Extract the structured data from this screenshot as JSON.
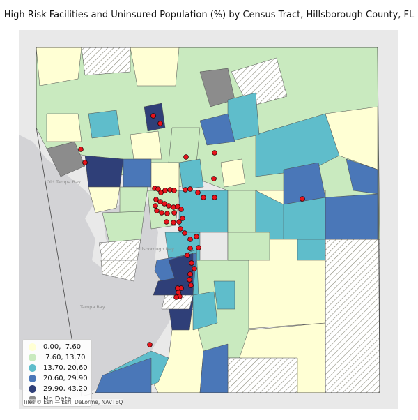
{
  "title": "High Risk Facilities and Uninsured Population (%) by Census Tract, Hillsborough County, FL",
  "legend": {
    "items": [
      {
        "label": "0.00,  7.60",
        "color": "#ffffd4"
      },
      {
        "label": " 7.60, 13.70",
        "color": "#c9eabf"
      },
      {
        "label": "13.70, 20.60",
        "color": "#5fbdcb"
      },
      {
        "label": "20.60, 29.90",
        "color": "#4a77b8"
      },
      {
        "label": "29.90, 43.20",
        "color": "#2f3f78"
      },
      {
        "label": "No Data",
        "color": "#8c8c8c"
      }
    ]
  },
  "basemap": {
    "attribution": "Tiles © Esri — Esri, DeLorme, NAVTEQ",
    "labels": {
      "old_tampa_bay": "Old\nTampa Bay",
      "hillsborough_bay": "Hillsborough\nBay",
      "tampa_bay": "Tampa Bay"
    }
  },
  "colors": {
    "facility_marker": "#e8141c",
    "hatch_stroke": "#8a8a7a",
    "water": "#d3d3d6",
    "land": "#e9e9e9"
  }
}
